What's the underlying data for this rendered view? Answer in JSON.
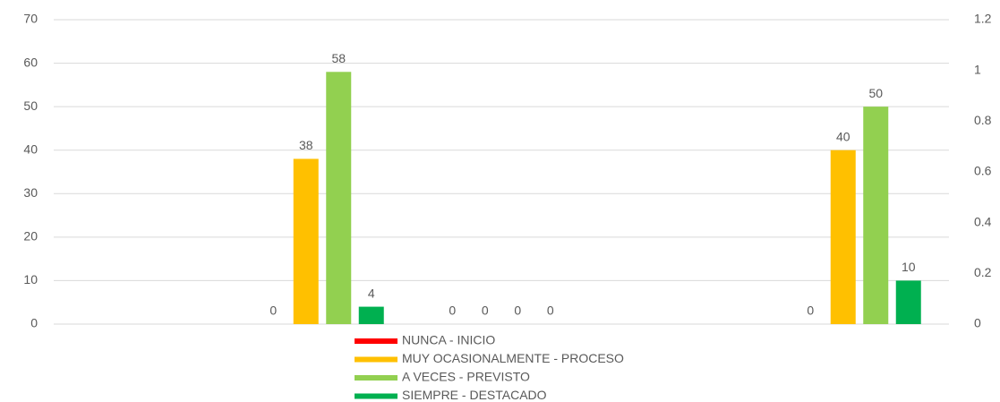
{
  "chart_data": {
    "type": "bar",
    "categories": [
      null,
      null,
      null,
      null,
      null
    ],
    "series": [
      {
        "name": "NUNCA - INICIO",
        "color": "#ff0000",
        "values": [
          null,
          0,
          0,
          null,
          0
        ]
      },
      {
        "name": "MUY OCASIONALMENTE - PROCESO",
        "color": "#ffc000",
        "values": [
          null,
          38,
          0,
          null,
          40
        ]
      },
      {
        "name": "A VECES - PREVISTO",
        "color": "#92d050",
        "values": [
          null,
          58,
          0,
          null,
          50
        ]
      },
      {
        "name": "SIEMPRE - DESTACADO",
        "color": "#00b050",
        "values": [
          null,
          4,
          0,
          null,
          10
        ]
      }
    ],
    "ylim": [
      0,
      70
    ],
    "yticks": [
      0,
      10,
      20,
      30,
      40,
      50,
      60,
      70
    ],
    "y2lim": [
      0,
      1.2
    ],
    "y2ticks": [
      0,
      0.2,
      0.4,
      0.6,
      0.8,
      1,
      1.2
    ],
    "grid": true,
    "legend": "bottom"
  }
}
